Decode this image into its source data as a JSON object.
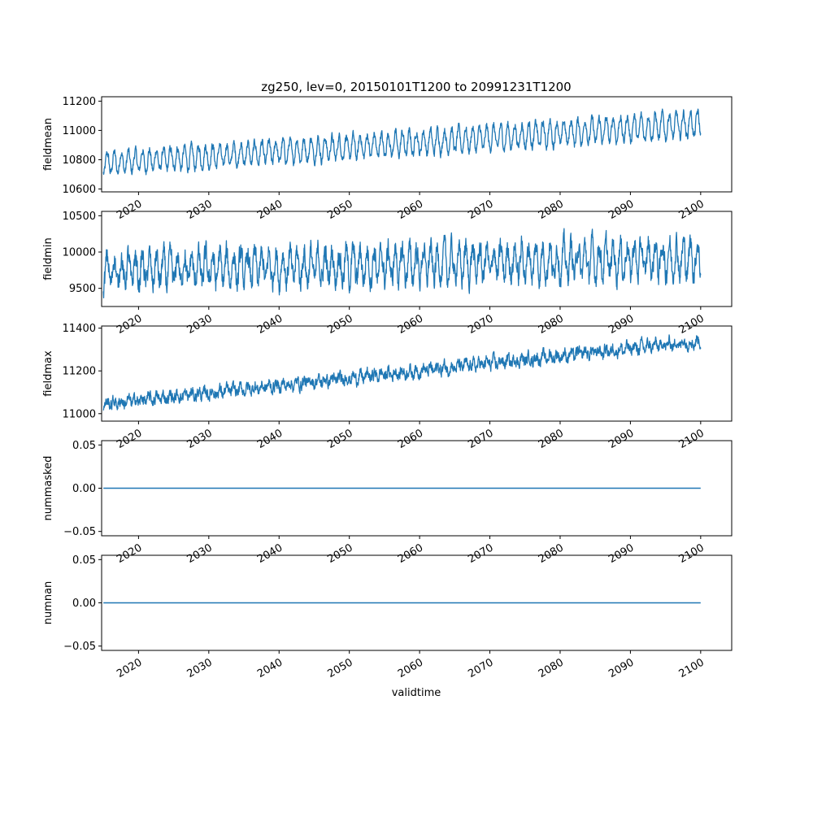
{
  "chart_data": {
    "type": "line",
    "title": "zg250, lev=0, 20150101T1200 to 20991231T1200",
    "xlabel": "validtime",
    "xlim": [
      "2014-10-01",
      "2104-06-01"
    ],
    "x_start": "2015-01-01",
    "x_end": "2099-12-31",
    "x_ticks": [
      "2020",
      "2030",
      "2040",
      "2050",
      "2060",
      "2070",
      "2080",
      "2090",
      "2100"
    ],
    "line_color": "#1f77b4",
    "grid": false,
    "panels": [
      {
        "ylabel": "fieldmean",
        "ylim": [
          10580,
          11230
        ],
        "y_ticks": [
          10600,
          10800,
          11000,
          11200
        ],
        "y_tick_labels": [
          "10600",
          "10800",
          "11000",
          "11200"
        ],
        "series": {
          "kind": "seasonal",
          "trend_start": 10775,
          "trend_end": 11045,
          "seasonal_amplitude_start": 70,
          "seasonal_amplitude_end": 85,
          "noise": 25,
          "min": 10610,
          "max": 11215
        }
      },
      {
        "ylabel": "fieldmin",
        "ylim": [
          9250,
          10560
        ],
        "y_ticks": [
          9500,
          10000,
          10500
        ],
        "y_tick_labels": [
          "9500",
          "10000",
          "10500"
        ],
        "series": {
          "kind": "seasonal",
          "trend_start": 9740,
          "trend_end": 9920,
          "seasonal_amplitude_start": 200,
          "seasonal_amplitude_end": 220,
          "noise": 130,
          "min": 9300,
          "max": 10550
        }
      },
      {
        "ylabel": "fieldmax",
        "ylim": [
          10965,
          11410
        ],
        "y_ticks": [
          11000,
          11200,
          11400
        ],
        "y_tick_labels": [
          "11000",
          "11200",
          "11400"
        ],
        "series": {
          "kind": "seasonal",
          "trend_start": 11045,
          "trend_end": 11340,
          "seasonal_amplitude_start": 12,
          "seasonal_amplitude_end": 15,
          "noise": 22,
          "min": 10985,
          "max": 11400
        }
      },
      {
        "ylabel": "nummasked",
        "ylim": [
          -0.055,
          0.055
        ],
        "y_ticks": [
          -0.05,
          0.0,
          0.05
        ],
        "y_tick_labels": [
          "−0.05",
          "0.00",
          "0.05"
        ],
        "series": {
          "kind": "constant",
          "value": 0.0
        }
      },
      {
        "ylabel": "numnan",
        "ylim": [
          -0.055,
          0.055
        ],
        "y_ticks": [
          -0.05,
          0.0,
          0.05
        ],
        "y_tick_labels": [
          "−0.05",
          "0.00",
          "0.05"
        ],
        "series": {
          "kind": "constant",
          "value": 0.0
        }
      }
    ]
  }
}
